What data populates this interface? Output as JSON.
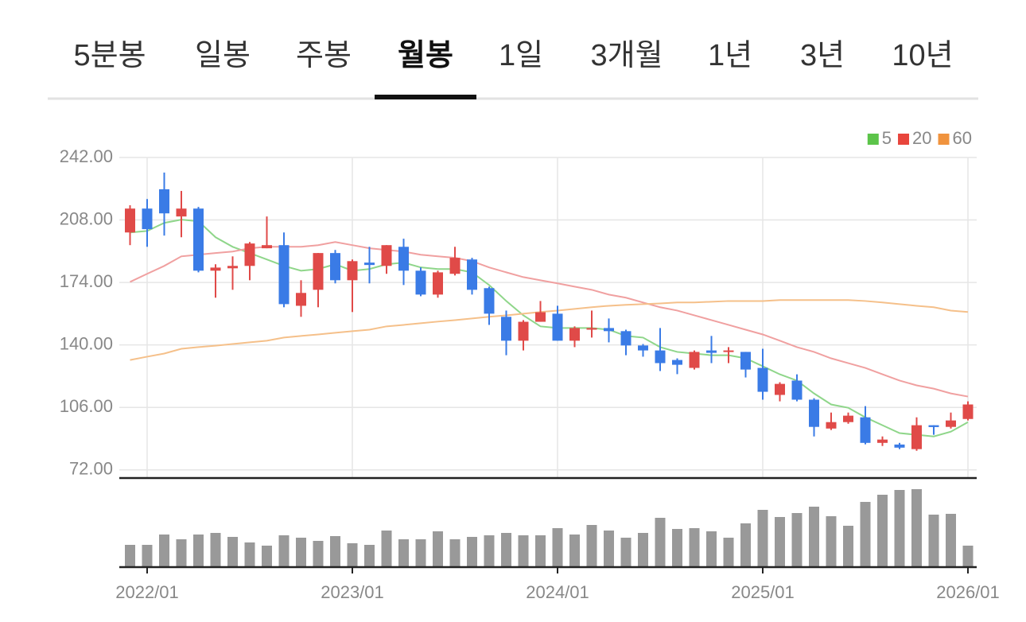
{
  "tabs": {
    "items": [
      "5분봉",
      "일봉",
      "주봉",
      "월봉",
      "1일",
      "3개월",
      "1년",
      "3년",
      "10년"
    ],
    "selected": 3
  },
  "chart_data": {
    "type": "candlestick",
    "categories": [
      null,
      "2022/01",
      null,
      null,
      null,
      null,
      null,
      null,
      null,
      null,
      null,
      null,
      null,
      "2023/01",
      null,
      null,
      null,
      null,
      null,
      null,
      null,
      null,
      null,
      null,
      null,
      "2024/01",
      null,
      null,
      null,
      null,
      null,
      null,
      null,
      null,
      null,
      null,
      null,
      "2025/01",
      null,
      null,
      null,
      null,
      null,
      null,
      null,
      null,
      null,
      null,
      null,
      "2026/01"
    ],
    "open": [
      201.2,
      214.2,
      224.7,
      209.9,
      214.2,
      180.4,
      181.7,
      183,
      192.6,
      194.3,
      161.3,
      170,
      190,
      175.2,
      184.8,
      183,
      193.4,
      180.4,
      167.4,
      178.7,
      186.5,
      170.9,
      155.3,
      142.3,
      152.6,
      157,
      142.3,
      148.3,
      149.2,
      147.5,
      139.7,
      137,
      131.8,
      127.5,
      137,
      136.2,
      136.2,
      127.5,
      112.8,
      120.6,
      110.2,
      94.5,
      98,
      100.6,
      86.7,
      85.8,
      83.3,
      96.3,
      95.4,
      99.7
    ],
    "high": [
      216,
      219.4,
      233.8,
      223.8,
      215.1,
      183.9,
      188.2,
      196,
      209.9,
      201.2,
      175.2,
      190,
      191.7,
      186.5,
      193.4,
      194.3,
      197.8,
      182.2,
      180.4,
      193.4,
      187.4,
      171.7,
      158.7,
      153.5,
      163.9,
      161.3,
      150.1,
      158.7,
      154.4,
      148.3,
      140.5,
      149.2,
      132.7,
      137,
      144.9,
      138.8,
      136.2,
      137.9,
      119.7,
      124,
      111,
      103.2,
      103.2,
      106.7,
      90.2,
      86.7,
      100.6,
      96.3,
      103.2,
      109.3
    ],
    "low": [
      194.3,
      193.4,
      199.5,
      198.6,
      179.5,
      165.7,
      170,
      175.2,
      192.6,
      160.5,
      155.3,
      160.5,
      173.5,
      157.9,
      173.5,
      178.7,
      172.6,
      166.5,
      165.7,
      177.8,
      167.4,
      150.9,
      134.4,
      137,
      152.6,
      142.3,
      138.8,
      144,
      141.4,
      134.4,
      133.6,
      125.8,
      124.1,
      126.6,
      130.1,
      130.1,
      122.3,
      110.2,
      109.3,
      109.3,
      90.2,
      93.7,
      97.1,
      85.9,
      85,
      83.3,
      82.4,
      91.1,
      94.5,
      98.9
    ],
    "close": [
      214.2,
      203,
      211.6,
      214.2,
      180.4,
      182.1,
      183,
      195.2,
      194.3,
      162.2,
      168.3,
      190,
      175.2,
      185.6,
      183.5,
      194.3,
      180.4,
      167.4,
      179.5,
      187.4,
      170,
      157,
      142.3,
      152.6,
      157.8,
      142.3,
      149.2,
      149.2,
      147.5,
      139.7,
      137,
      130.1,
      129.2,
      136.2,
      135.7,
      137,
      126.6,
      114.5,
      118.8,
      110.2,
      95.4,
      98,
      101.5,
      86.7,
      88.5,
      84.1,
      96.3,
      95.3,
      98.9,
      107.6
    ],
    "up_color": "#e04a48",
    "down_color": "#3a7be6",
    "series": [
      {
        "name": "5",
        "color": "#5cc44a",
        "line_color": "#8fd68a",
        "values": [
          201.2,
          202,
          206.4,
          208.2,
          207.3,
          198.6,
          193.4,
          190,
          186.5,
          183,
          180.4,
          181.3,
          183.9,
          180.4,
          181.3,
          183.9,
          184.8,
          182.2,
          181.3,
          181.3,
          179.5,
          172.6,
          163.9,
          156.1,
          150.1,
          149.2,
          149.2,
          149.2,
          148.3,
          144.9,
          144,
          138.8,
          136.2,
          135.3,
          134.4,
          134.4,
          132.7,
          128.4,
          124,
          120.6,
          113.6,
          107.6,
          105.8,
          100.6,
          96.3,
          92,
          91.1,
          90.2,
          92.8,
          98
        ]
      },
      {
        "name": "20",
        "color": "#e8453c",
        "line_color": "#f0a0a0",
        "values": [
          174.3,
          178.7,
          183,
          188.2,
          189.1,
          190,
          190.8,
          192.6,
          193.4,
          193.4,
          193.4,
          194.3,
          196,
          194.3,
          192.6,
          191.7,
          190.8,
          189.1,
          188.2,
          187.4,
          185.6,
          182.2,
          179.5,
          176.9,
          175.2,
          173.5,
          171.7,
          170,
          167.4,
          165.7,
          163.1,
          160.5,
          158.7,
          156.1,
          153.5,
          150.9,
          148.3,
          145.7,
          142.3,
          138.8,
          136.2,
          132.7,
          130.1,
          127.5,
          124,
          120.6,
          118,
          116.2,
          113.6,
          111.9
        ]
      },
      {
        "name": "60",
        "color": "#f0933e",
        "line_color": "#f5c08a",
        "values": [
          131.8,
          133.6,
          135.3,
          137.9,
          138.8,
          139.6,
          140.5,
          141.4,
          142.3,
          144,
          144.9,
          145.7,
          146.6,
          147.5,
          148.3,
          150.1,
          150.9,
          151.8,
          152.7,
          153.5,
          154.4,
          155.3,
          156.1,
          157,
          157.9,
          158.7,
          159.6,
          160.5,
          161.3,
          161.8,
          162.2,
          162.6,
          163.1,
          163.1,
          163.5,
          163.9,
          163.9,
          163.9,
          164.4,
          164.4,
          164.4,
          164.4,
          164.4,
          163.9,
          163.1,
          162.2,
          161.3,
          160.5,
          158.7,
          157.9
        ]
      }
    ],
    "ylim": [
      68,
      242
    ],
    "yticks": [
      {
        "value": 242,
        "label": "242.00"
      },
      {
        "value": 208,
        "label": "208.00"
      },
      {
        "value": 174,
        "label": "174.00"
      },
      {
        "value": 140,
        "label": "140.00"
      },
      {
        "value": 106,
        "label": "106.00"
      },
      {
        "value": 72,
        "label": "72.00"
      }
    ],
    "grid": true,
    "volume": {
      "color": "#999999",
      "ylim": [
        0,
        100
      ],
      "values": [
        28,
        28,
        41,
        35,
        41,
        43,
        38,
        31,
        27,
        40,
        37,
        33,
        39,
        30,
        28,
        46,
        35,
        35,
        45,
        35,
        38,
        40,
        43,
        40,
        40,
        49,
        41,
        53,
        46,
        37,
        43,
        62,
        48,
        49,
        45,
        37,
        55,
        72,
        63,
        68,
        76,
        64,
        52,
        82,
        91,
        97,
        98,
        66,
        67,
        27
      ]
    }
  }
}
